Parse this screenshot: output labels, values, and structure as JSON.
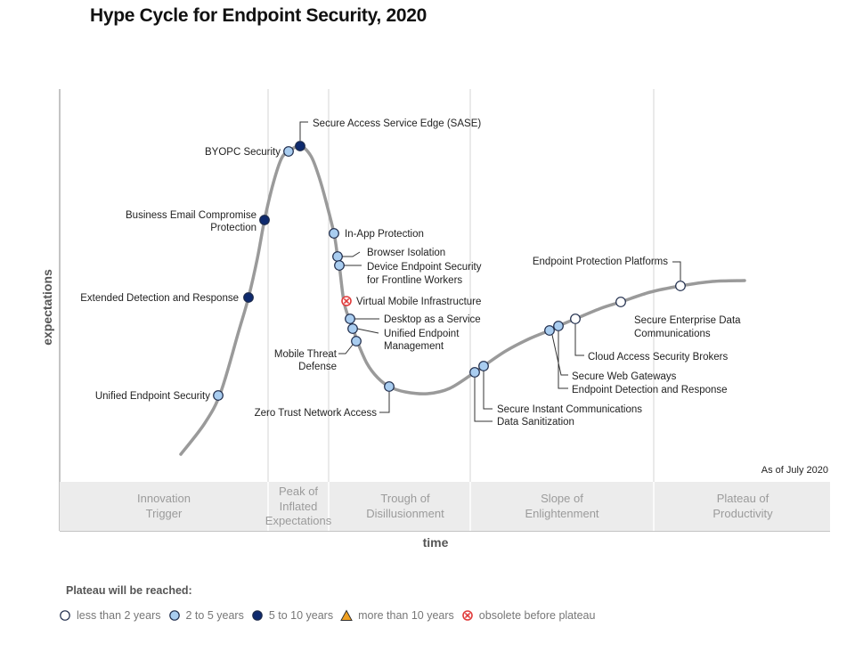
{
  "title": "Hype Cycle for Endpoint Security, 2020",
  "y_axis_label": "expectations",
  "x_axis_label": "time",
  "as_of": "As of July 2020",
  "phases": [
    {
      "lines": [
        "Innovation",
        "Trigger"
      ]
    },
    {
      "lines": [
        "Peak of",
        "Inflated",
        "Expectations"
      ]
    },
    {
      "lines": [
        "Trough of",
        "Disillusionment"
      ]
    },
    {
      "lines": [
        "Slope of",
        "Enlightenment"
      ]
    },
    {
      "lines": [
        "Plateau of",
        "Productivity"
      ]
    }
  ],
  "technologies": [
    {
      "name": [
        "Unified Endpoint Security"
      ],
      "plateau": "2-5"
    },
    {
      "name": [
        "Extended Detection and Response"
      ],
      "plateau": "5-10"
    },
    {
      "name": [
        "Business Email Compromise",
        "Protection"
      ],
      "plateau": "5-10"
    },
    {
      "name": [
        "BYOPC Security"
      ],
      "plateau": "2-5"
    },
    {
      "name": [
        "Secure Access Service Edge (SASE)"
      ],
      "plateau": "5-10"
    },
    {
      "name": [
        "In-App Protection"
      ],
      "plateau": "2-5"
    },
    {
      "name": [
        "Browser Isolation"
      ],
      "plateau": "2-5"
    },
    {
      "name": [
        "Device Endpoint Security",
        "for Frontline Workers"
      ],
      "plateau": "2-5"
    },
    {
      "name": [
        "Virtual Mobile Infrastructure"
      ],
      "plateau": "obsolete"
    },
    {
      "name": [
        "Desktop as a Service"
      ],
      "plateau": "2-5"
    },
    {
      "name": [
        "Unified Endpoint",
        "Management"
      ],
      "plateau": "2-5"
    },
    {
      "name": [
        "Mobile Threat",
        "Defense"
      ],
      "plateau": "2-5"
    },
    {
      "name": [
        "Zero Trust Network Access"
      ],
      "plateau": "2-5"
    },
    {
      "name": [
        "Secure Instant Communications"
      ],
      "plateau": "2-5"
    },
    {
      "name": [
        "Data Sanitization"
      ],
      "plateau": "2-5"
    },
    {
      "name": [
        "Secure Web Gateways"
      ],
      "plateau": "2-5"
    },
    {
      "name": [
        "Endpoint Detection and Response"
      ],
      "plateau": "2-5"
    },
    {
      "name": [
        "Cloud Access Security Brokers"
      ],
      "plateau": "<2"
    },
    {
      "name": [
        "Secure Enterprise Data",
        "Communications"
      ],
      "plateau": "<2"
    },
    {
      "name": [
        "Endpoint Protection Platforms"
      ],
      "plateau": "<2"
    }
  ],
  "legend": {
    "title": "Plateau will be reached:",
    "items": [
      {
        "key": "<2",
        "label": "less than 2 years"
      },
      {
        "key": "2-5",
        "label": "2 to 5 years"
      },
      {
        "key": "5-10",
        "label": "5 to 10 years"
      },
      {
        "key": ">10",
        "label": "more than 10 years"
      },
      {
        "key": "obsolete",
        "label": "obsolete before plateau"
      }
    ]
  },
  "colors": {
    "<2": "#ffffff",
    "2-5": "#a9cdf0",
    "5-10": "#0e2a6e",
    "curve": "#9a9a9a",
    "obsolete": "#e03a3a",
    "more_than_10": "#f0a020",
    "band": "#ececec"
  }
}
